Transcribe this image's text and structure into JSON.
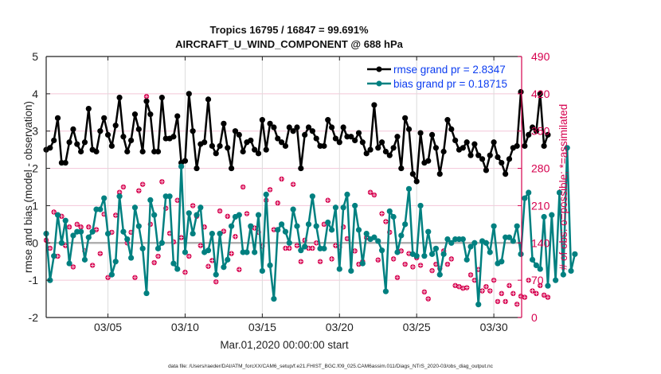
{
  "chart_data": {
    "type": "line",
    "title": [
      "Tropics 16795 / 16847 = 99.691%",
      "AIRCRAFT_U_WIND_COMPONENT @ 688 hPa"
    ],
    "xlabel": "Mar.01,2020 00:00:00 start",
    "ylabel": "rmse and bias (model - observation)",
    "ylabel_right": "# of obs: o=possible; *=assimilated",
    "ylim": [
      -2,
      5
    ],
    "ylim_right": [
      0,
      490
    ],
    "yticks": [
      "-2",
      "-1",
      "0",
      "1",
      "2",
      "3",
      "4",
      "5"
    ],
    "yticks_right": [
      "0",
      "70",
      "140",
      "210",
      "280",
      "350",
      "420",
      "490"
    ],
    "xlim_days": [
      0,
      30.8
    ],
    "xticks": [
      {
        "label": "03/05",
        "day": 4
      },
      {
        "label": "03/10",
        "day": 9
      },
      {
        "label": "03/15",
        "day": 14
      },
      {
        "label": "03/20",
        "day": 19
      },
      {
        "label": "03/25",
        "day": 24
      },
      {
        "label": "03/30",
        "day": 29
      }
    ],
    "x_step_days": 0.25,
    "grid": true,
    "legend_position": "top-right",
    "colors": {
      "rmse": "#000000",
      "bias": "#008080",
      "obs": "#d6004e",
      "legend_text": "#0b3cf0",
      "zero_line": "#b0b0b0",
      "grid": "#f3c6d8",
      "right_axis": "#d6004e"
    },
    "series": [
      {
        "name": "rmse grand pr = 2.8347",
        "key": "rmse",
        "values": [
          2.5,
          2.55,
          2.75,
          3.35,
          2.15,
          2.15,
          2.7,
          3.05,
          2.65,
          2.45,
          2.7,
          3.6,
          2.5,
          2.45,
          3.0,
          3.35,
          2.9,
          2.6,
          3.15,
          3.9,
          2.85,
          2.45,
          2.75,
          3.45,
          3.05,
          2.45,
          3.8,
          3.45,
          2.45,
          2.45,
          3.9,
          2.8,
          2.8,
          2.85,
          3.4,
          2.15,
          2.2,
          4.0,
          3.0,
          2.0,
          2.65,
          2.7,
          3.85,
          2.6,
          2.4,
          2.6,
          3.2,
          2.55,
          2.0,
          3.0,
          2.9,
          2.45,
          2.7,
          2.75,
          2.5,
          2.4,
          3.3,
          2.5,
          3.2,
          3.1,
          2.8,
          2.7,
          2.6,
          3.1,
          3.0,
          3.1,
          2.0,
          2.9,
          3.1,
          3.0,
          2.8,
          2.6,
          2.6,
          3.3,
          3.1,
          2.8,
          2.7,
          3.1,
          2.85,
          2.85,
          2.75,
          2.95,
          2.7,
          2.4,
          2.5,
          3.7,
          2.55,
          2.7,
          2.45,
          2.35,
          2.55,
          2.85,
          2.0,
          3.35,
          3.05,
          1.85,
          1.65,
          2.95,
          2.15,
          2.2,
          2.9,
          2.55,
          1.85,
          2.45,
          3.3,
          3.05,
          2.75,
          2.5,
          2.55,
          2.7,
          2.35,
          2.65,
          2.35,
          2.25,
          1.95,
          2.35,
          2.7,
          2.3,
          2.15,
          1.85,
          2.25,
          2.55,
          2.6,
          4.05,
          2.6,
          2.9,
          3.1,
          3.0,
          4.0,
          2.6,
          2.9
        ]
      },
      {
        "name": "bias grand pr = 0.18715",
        "key": "bias",
        "values": [
          0.25,
          -1.0,
          -0.35,
          0.75,
          0.0,
          0.6,
          -0.55,
          0.2,
          0.3,
          0.3,
          -0.45,
          0.15,
          0.3,
          0.9,
          0.9,
          1.2,
          0.25,
          -0.85,
          -0.5,
          1.25,
          0.3,
          0.1,
          -0.4,
          0.95,
          0.45,
          -0.15,
          -1.35,
          1.15,
          0.75,
          -0.15,
          0.0,
          1.25,
          1.25,
          -0.55,
          -0.7,
          2.05,
          -0.25,
          0.8,
          0.25,
          0.75,
          0.95,
          -0.25,
          -0.2,
          0.25,
          -0.85,
          0.25,
          -0.65,
          -0.45,
          0.45,
          0.7,
          0.75,
          -0.25,
          -0.25,
          0.45,
          -0.25,
          0.75,
          -0.75,
          1.3,
          -0.6,
          -1.5,
          0.35,
          0.5,
          0.3,
          0.0,
          0.9,
          0.45,
          -0.2,
          -0.1,
          0.5,
          1.25,
          0.45,
          -0.15,
          -0.15,
          0.55,
          0.35,
          0.95,
          -0.7,
          0.95,
          1.3,
          -0.75,
          1.0,
          0.35,
          -0.55,
          0.25,
          0.1,
          0.15,
          0.05,
          -0.2,
          -1.3,
          0.85,
          0.7,
          -0.25,
          0.2,
          0.5,
          1.45,
          -0.3,
          -0.35,
          1.0,
          -0.35,
          0.3,
          -0.3,
          -0.15,
          -0.85,
          -0.3,
          0.1,
          0.0,
          0.1,
          0.1,
          0.1,
          -0.45,
          -0.1,
          0.0,
          -1.65,
          0.05,
          0.0,
          -0.25,
          0.45,
          -0.55,
          -0.5,
          0.15,
          0.15,
          0.05,
          0.45,
          -0.3,
          1.2,
          1.35,
          -0.45,
          -0.6,
          -0.7,
          0.7,
          -1.15,
          0.75,
          -1.0,
          1.35,
          -0.85,
          2.55,
          -0.75,
          -0.3
        ]
      },
      {
        "name": "# obs assimilated",
        "key": "obs",
        "axis": "right",
        "values": [
          145,
          130,
          198,
          115,
          190,
          135,
          170,
          95,
          175,
          170,
          125,
          170,
          98,
          165,
          120,
          194,
          75,
          160,
          192,
          235,
          245,
          140,
          160,
          75,
          238,
          250,
          415,
          175,
          103,
          115,
          255,
          205,
          158,
          142,
          220,
          150,
          85,
          115,
          210,
          190,
          135,
          170,
          96,
          107,
          67,
          200,
          162,
          190,
          120,
          152,
          90,
          245,
          195,
          170,
          168,
          160,
          134,
          220,
          240,
          165,
          215,
          260,
          130,
          130,
          250,
          135,
          105,
          145,
          130,
          130,
          140,
          105,
          175,
          220,
          110,
          135,
          132,
          170,
          148,
          88,
          125,
          100,
          105,
          150,
          235,
          230,
          108,
          195,
          180,
          160,
          110,
          75,
          125,
          100,
          120,
          95,
          112,
          98,
          48,
          35,
          88,
          100,
          92,
          125,
          100,
          110,
          60,
          58,
          55,
          56,
          80,
          70,
          90,
          50,
          58,
          50,
          70,
          30,
          45,
          30,
          60,
          45,
          25,
          40,
          38,
          70,
          50,
          45,
          60,
          42,
          38
        ]
      }
    ],
    "footer": "data file: /Users/raeder/DAI/ATM_forcXX/CAM6_setup/f.e21.FHIST_BGC.f09_025.CAM6assim.011/Diags_NTrS_2020-03/obs_diag_output.nc"
  }
}
